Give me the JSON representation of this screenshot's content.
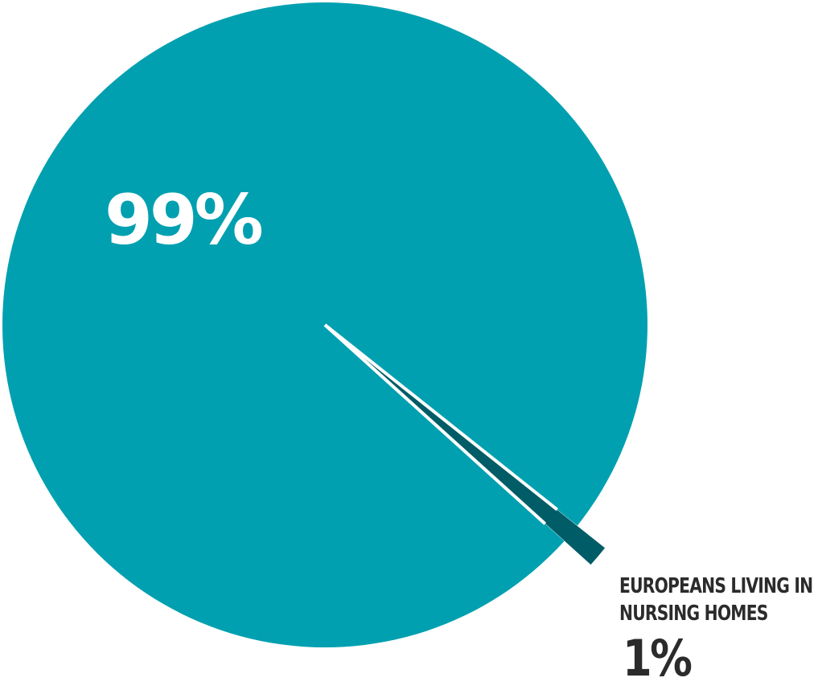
{
  "chart_data": {
    "type": "pie",
    "slices": [
      {
        "label": "",
        "value": 99,
        "display": "99%",
        "color": "#00a0b0"
      },
      {
        "label": "EUROPEANS LIVING IN NURSING HOMES",
        "value": 1,
        "display": "1%",
        "color": "#005c66",
        "exploded": true
      }
    ],
    "caption_lines": [
      "EUROPEANS LIVING IN",
      "NURSING HOMES"
    ],
    "separator_color": "#ffffff"
  }
}
